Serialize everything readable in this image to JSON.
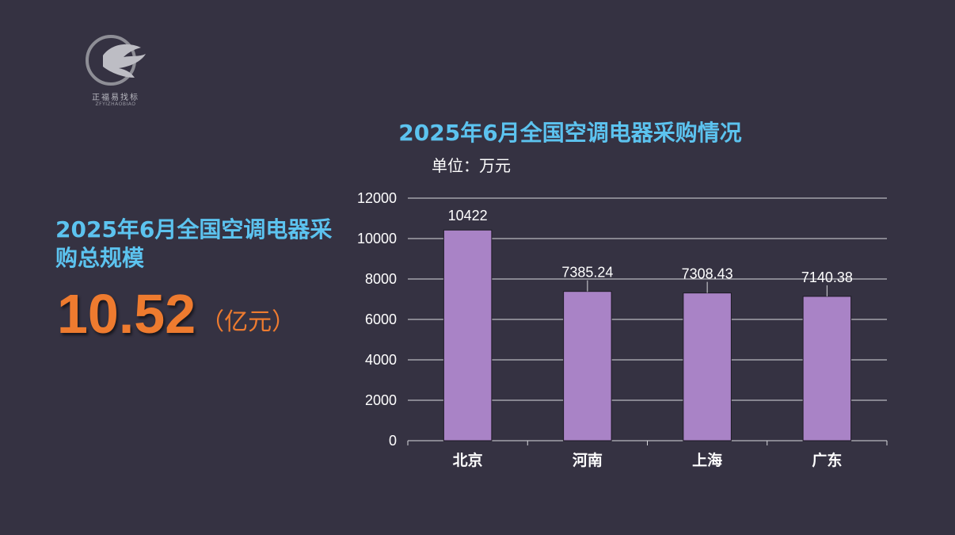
{
  "logo": {
    "name_cn": "正福易找标",
    "name_en": "ZFYIZHAOBIAO"
  },
  "summary": {
    "title": "2025年6月全国空调电器采购总规模",
    "value": "10.52",
    "unit": "（亿元）"
  },
  "colors": {
    "accent_blue": "#5cc3ef",
    "accent_orange": "#ee7b2f",
    "bar": "#a983c6",
    "background": "#353242"
  },
  "chart_data": {
    "type": "bar",
    "title": "2025年6月全国空调电器采购情况",
    "unit_label": "单位：万元",
    "categories": [
      "北京",
      "河南",
      "上海",
      "广东"
    ],
    "values": [
      10422,
      7385.24,
      7308.43,
      7140.38
    ],
    "value_labels": [
      "10422",
      "7385.24",
      "7308.43",
      "7140.38"
    ],
    "ylim": [
      0,
      12000
    ],
    "yticks": [
      0,
      2000,
      4000,
      6000,
      8000,
      10000,
      12000
    ],
    "grid": true,
    "legend": "none",
    "xlabel": "",
    "ylabel": ""
  }
}
